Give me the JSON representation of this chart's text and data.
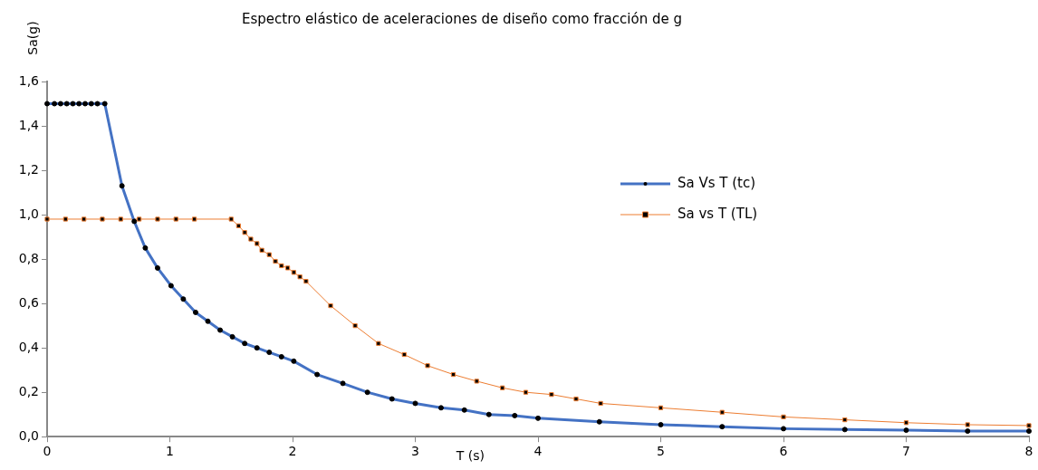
{
  "chart_data": {
    "type": "line",
    "title": "Espectro elástico de aceleraciones de diseño como fracción de g",
    "xlabel": "T (s)",
    "ylabel": "Sa(g)",
    "xlim": [
      0,
      8
    ],
    "xticks": [
      0,
      1,
      2,
      3,
      4,
      5,
      6,
      7,
      8
    ],
    "ylim": [
      0,
      1.6
    ],
    "yticks": [
      {
        "value": 0,
        "label": "0,0"
      },
      {
        "value": 0.2,
        "label": "0,2"
      },
      {
        "value": 0.4,
        "label": "0,4"
      },
      {
        "value": 0.6,
        "label": "0,6"
      },
      {
        "value": 0.8,
        "label": "0,8"
      },
      {
        "value": 1.0,
        "label": "1,0"
      },
      {
        "value": 1.2,
        "label": "1,2"
      },
      {
        "value": 1.4,
        "label": "1,4"
      },
      {
        "value": 1.6,
        "label": "1,6"
      }
    ],
    "grid": false,
    "legend": "right",
    "line_style": "solid",
    "series": [
      {
        "name": "Sa Vs T (tc)",
        "color": "#4472c4",
        "marker": "circle",
        "x": [
          0,
          0.06,
          0.11,
          0.16,
          0.21,
          0.26,
          0.31,
          0.36,
          0.41,
          0.47,
          0.61,
          0.71,
          0.8,
          0.9,
          1.01,
          1.11,
          1.21,
          1.31,
          1.41,
          1.51,
          1.61,
          1.71,
          1.81,
          1.91,
          2.01,
          2.2,
          2.41,
          2.61,
          2.81,
          3.0,
          3.21,
          3.4,
          3.6,
          3.81,
          4.0,
          4.5,
          5.0,
          5.5,
          6.0,
          6.5,
          7.0,
          7.5,
          8.0
        ],
        "values": [
          1.5,
          1.5,
          1.5,
          1.5,
          1.5,
          1.5,
          1.5,
          1.5,
          1.5,
          1.5,
          1.13,
          0.97,
          0.85,
          0.76,
          0.68,
          0.62,
          0.56,
          0.52,
          0.48,
          0.45,
          0.42,
          0.4,
          0.38,
          0.36,
          0.34,
          0.28,
          0.24,
          0.2,
          0.17,
          0.15,
          0.13,
          0.12,
          0.1,
          0.095,
          0.083,
          0.067,
          0.054,
          0.045,
          0.036,
          0.032,
          0.029,
          0.025,
          0.025
        ]
      },
      {
        "name": "Sa vs T (TL)",
        "color": "#ed7d31",
        "marker": "square",
        "x": [
          0,
          0.15,
          0.3,
          0.45,
          0.6,
          0.75,
          0.9,
          1.05,
          1.2,
          1.5,
          1.56,
          1.61,
          1.66,
          1.71,
          1.75,
          1.81,
          1.86,
          1.91,
          1.96,
          2.01,
          2.06,
          2.11,
          2.31,
          2.51,
          2.7,
          2.91,
          3.1,
          3.31,
          3.5,
          3.71,
          3.9,
          4.11,
          4.31,
          4.51,
          5.0,
          5.5,
          6.0,
          6.5,
          7.0,
          7.5,
          8.0
        ],
        "values": [
          0.98,
          0.98,
          0.98,
          0.98,
          0.98,
          0.98,
          0.98,
          0.98,
          0.98,
          0.98,
          0.95,
          0.92,
          0.89,
          0.87,
          0.84,
          0.82,
          0.79,
          0.77,
          0.76,
          0.74,
          0.72,
          0.7,
          0.59,
          0.5,
          0.42,
          0.37,
          0.32,
          0.28,
          0.25,
          0.22,
          0.2,
          0.19,
          0.17,
          0.15,
          0.13,
          0.11,
          0.089,
          0.076,
          0.063,
          0.054,
          0.05
        ]
      }
    ]
  }
}
